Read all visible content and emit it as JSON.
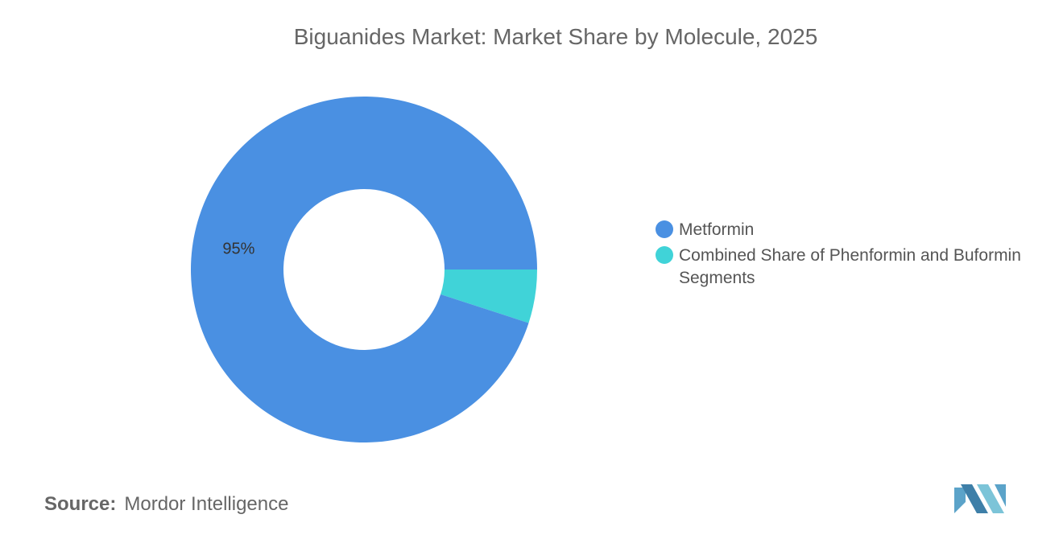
{
  "chart_data": {
    "type": "pie",
    "title": "Biguanides Market: Market Share by Molecule, 2025",
    "series": [
      {
        "name": "Metformin",
        "value": 95,
        "label": "95%",
        "color": "#4A90E2"
      },
      {
        "name": "Combined Share of Phenformin and Buformin Segments",
        "value": 5,
        "label": "",
        "color": "#40D3D8"
      }
    ],
    "donut": true,
    "legend_position": "right"
  },
  "source": {
    "prefix": "Source:",
    "text": "Mordor Intelligence"
  },
  "logo": {
    "icon": "mordor-intelligence-logo",
    "color": "#5BA3C9"
  }
}
